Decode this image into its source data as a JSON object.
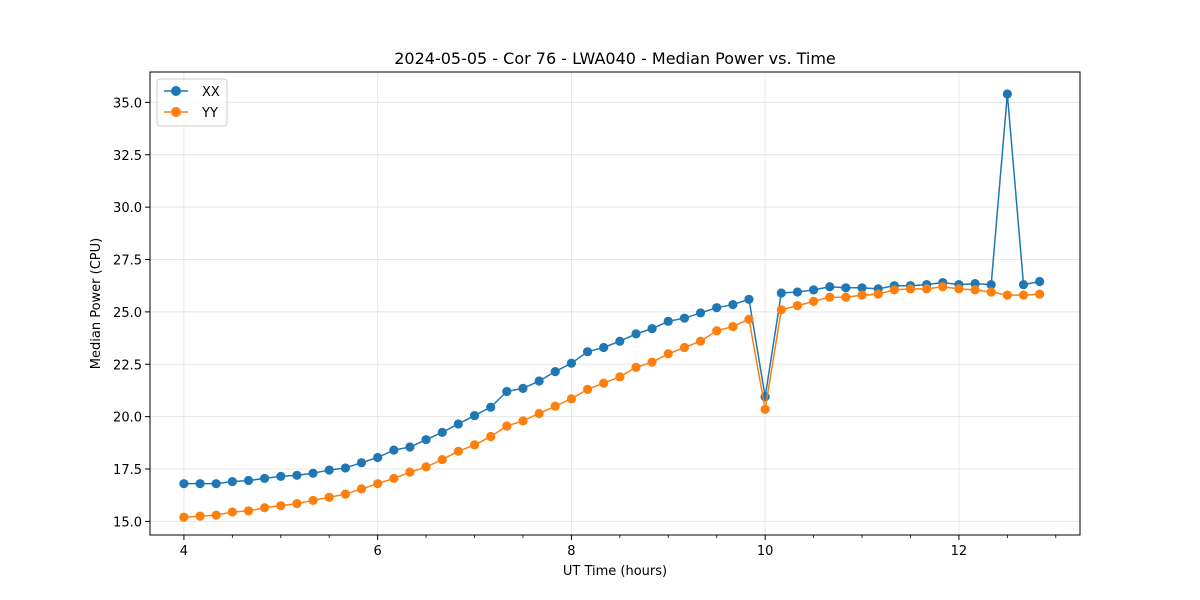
{
  "chart_data": {
    "type": "line",
    "title": "2024-05-05 - Cor 76 - LWA040 - Median Power vs. Time",
    "xlabel": "UT Time (hours)",
    "ylabel": "Median Power (CPU)",
    "xlim": [
      3.65,
      13.25
    ],
    "ylim": [
      14.35,
      36.45
    ],
    "xticks": [
      4,
      6,
      8,
      10,
      12
    ],
    "xtick_labels": [
      "4",
      "6",
      "8",
      "10",
      "12"
    ],
    "x_minor_step": 0.5,
    "yticks": [
      15.0,
      17.5,
      20.0,
      22.5,
      25.0,
      27.5,
      30.0,
      32.5,
      35.0
    ],
    "ytick_labels": [
      "15.0",
      "17.5",
      "20.0",
      "22.5",
      "25.0",
      "27.5",
      "30.0",
      "32.5",
      "35.0"
    ],
    "grid": true,
    "legend_position": "upper-left",
    "x": [
      4.0,
      4.167,
      4.333,
      4.5,
      4.667,
      4.833,
      5.0,
      5.167,
      5.333,
      5.5,
      5.667,
      5.833,
      6.0,
      6.167,
      6.333,
      6.5,
      6.667,
      6.833,
      7.0,
      7.167,
      7.333,
      7.5,
      7.667,
      7.833,
      8.0,
      8.167,
      8.333,
      8.5,
      8.667,
      8.833,
      9.0,
      9.167,
      9.333,
      9.5,
      9.667,
      9.833,
      10.0,
      10.167,
      10.333,
      10.5,
      10.667,
      10.833,
      11.0,
      11.167,
      11.333,
      11.5,
      11.667,
      11.833,
      12.0,
      12.167,
      12.333,
      12.5,
      12.667,
      12.833
    ],
    "series": [
      {
        "name": "XX",
        "color": "#1f77b4",
        "values": [
          16.8,
          16.8,
          16.8,
          16.9,
          16.95,
          17.05,
          17.15,
          17.2,
          17.3,
          17.45,
          17.55,
          17.8,
          18.05,
          18.4,
          18.55,
          18.9,
          19.25,
          19.65,
          20.05,
          20.45,
          21.2,
          21.35,
          21.7,
          22.15,
          22.55,
          23.1,
          23.3,
          23.6,
          23.95,
          24.2,
          24.55,
          24.7,
          24.95,
          25.2,
          25.35,
          25.6,
          20.95,
          25.9,
          25.95,
          26.05,
          26.2,
          26.15,
          26.15,
          26.1,
          26.25,
          26.25,
          26.3,
          26.4,
          26.3,
          26.35,
          26.3,
          35.4,
          26.3,
          26.45
        ]
      },
      {
        "name": "YY",
        "color": "#ff7f0e",
        "values": [
          15.2,
          15.25,
          15.3,
          15.45,
          15.5,
          15.65,
          15.75,
          15.85,
          16.0,
          16.15,
          16.3,
          16.55,
          16.8,
          17.05,
          17.35,
          17.6,
          17.95,
          18.35,
          18.65,
          19.05,
          19.55,
          19.8,
          20.15,
          20.5,
          20.85,
          21.3,
          21.6,
          21.9,
          22.35,
          22.6,
          23.0,
          23.3,
          23.6,
          24.1,
          24.3,
          24.65,
          20.35,
          25.1,
          25.3,
          25.5,
          25.7,
          25.7,
          25.8,
          25.85,
          26.05,
          26.1,
          26.1,
          26.2,
          26.1,
          26.05,
          25.95,
          25.8,
          25.8,
          25.85
        ]
      }
    ]
  }
}
